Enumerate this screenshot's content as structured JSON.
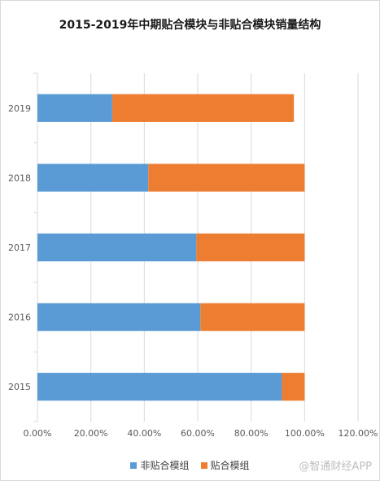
{
  "chart_data": {
    "type": "bar",
    "orientation": "horizontal",
    "stacked": true,
    "title": "2015-2019年中期贴合模块与非贴合模块销量结构",
    "categories": [
      "2019",
      "2018",
      "2017",
      "2016",
      "2015"
    ],
    "series": [
      {
        "name": "非贴合模组",
        "color": "#5b9bd5",
        "values": [
          0.28,
          0.415,
          0.595,
          0.61,
          0.915
        ]
      },
      {
        "name": "贴合模组",
        "color": "#ed7d31",
        "values": [
          0.68,
          0.585,
          0.405,
          0.39,
          0.085
        ]
      }
    ],
    "xlim": [
      0,
      1.2
    ],
    "xticks": [
      "0.00%",
      "20.00%",
      "40.00%",
      "60.00%",
      "80.00%",
      "100.00%",
      "120.00%"
    ],
    "grid": "vertical",
    "legend": "bottom"
  },
  "watermark": "@智通财经APP"
}
